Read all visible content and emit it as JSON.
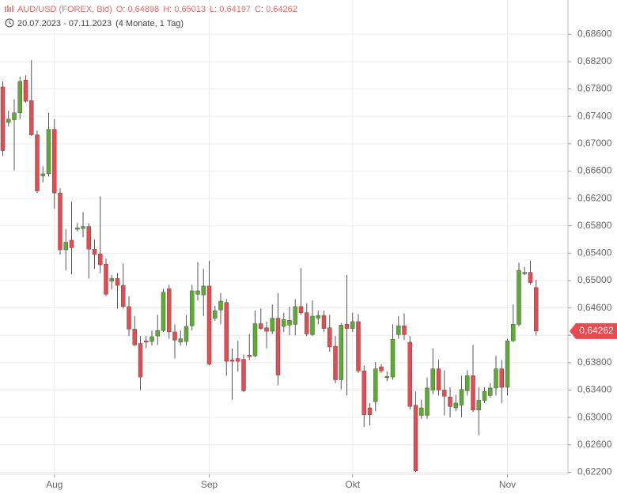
{
  "chart_data": {
    "type": "candlestick",
    "title": "AUD/USD (FOREX, Bid)",
    "quote": [
      "O: 0,64898",
      "H: 0,65013",
      "L: 0,64197",
      "C: 0,64262"
    ],
    "date_range": "20.07.2023 - 07.11.2023",
    "period": "(4 Monate, 1 Tag)",
    "last_label": "0,64262",
    "up_color": "#5aad2e",
    "down_color": "#e84a4f",
    "grid": true,
    "categories": [
      null,
      null,
      null,
      null,
      null,
      null,
      null,
      null,
      null,
      "Aug",
      null,
      null,
      null,
      null,
      null,
      null,
      null,
      null,
      null,
      null,
      null,
      null,
      null,
      null,
      null,
      null,
      null,
      null,
      null,
      null,
      null,
      null,
      null,
      null,
      null,
      null,
      "Sep",
      null,
      null,
      null,
      null,
      null,
      null,
      null,
      null,
      null,
      null,
      null,
      null,
      null,
      null,
      null,
      null,
      null,
      null,
      null,
      null,
      null,
      null,
      null,
      null,
      "Okt",
      null,
      null,
      null,
      null,
      null,
      null,
      null,
      null,
      null,
      null,
      null,
      null,
      null,
      null,
      null,
      null,
      null,
      null,
      null,
      null,
      null,
      null,
      null,
      null,
      null,
      null,
      "Nov",
      null,
      null,
      null,
      null,
      null
    ],
    "open": [
      0.6783,
      0.6731,
      0.6735,
      0.6745,
      0.6793,
      0.6763,
      0.6713,
      0.6653,
      0.6656,
      0.6721,
      0.6628,
      0.6545,
      0.6559,
      0.6575,
      0.6576,
      0.6579,
      0.6546,
      0.6539,
      0.6524,
      0.6499,
      0.6503,
      0.6493,
      0.6462,
      0.6429,
      0.6408,
      0.6412,
      0.6411,
      0.6419,
      0.6427,
      0.6488,
      0.6425,
      0.641,
      0.6411,
      0.6434,
      0.648,
      0.6479,
      0.6492,
      0.6445,
      0.6457,
      0.6468,
      0.6384,
      0.6386,
      0.6385,
      0.6391,
      0.639,
      0.6437,
      0.6431,
      0.6426,
      0.6445,
      0.6433,
      0.6435,
      0.6436,
      0.6462,
      0.6453,
      0.6421,
      0.6445,
      0.6449,
      0.6431,
      0.6404,
      0.6355,
      0.6436,
      0.643,
      0.644,
      0.6368,
      0.6314,
      0.6323,
      0.6374,
      0.6358,
      0.6359,
      0.6421,
      0.6434,
      0.641,
      0.6318,
      0.6303,
      0.6303,
      0.634,
      0.6371,
      0.634,
      0.633,
      0.6314,
      0.6318,
      0.6339,
      0.6361,
      0.6311,
      0.6325,
      0.6332,
      0.6343,
      0.6371,
      0.6344,
      0.6412,
      0.6436,
      0.6512,
      0.6512,
      0.64898
    ],
    "high": [
      0.6791,
      0.6748,
      0.6765,
      0.6798,
      0.68,
      0.6822,
      0.6719,
      0.6667,
      0.6745,
      0.6736,
      0.6635,
      0.6575,
      0.6615,
      0.6584,
      0.66,
      0.6584,
      0.656,
      0.6623,
      0.6532,
      0.6508,
      0.6511,
      0.6525,
      0.6477,
      0.6448,
      0.6419,
      0.6419,
      0.6427,
      0.645,
      0.6488,
      0.6494,
      0.6436,
      0.6427,
      0.645,
      0.6494,
      0.6527,
      0.6517,
      0.6529,
      0.6463,
      0.6482,
      0.6473,
      0.6401,
      0.6412,
      0.6392,
      0.6422,
      0.6456,
      0.6459,
      0.644,
      0.6465,
      0.6482,
      0.6453,
      0.6462,
      0.6473,
      0.6518,
      0.6467,
      0.6471,
      0.6456,
      0.6456,
      0.645,
      0.6419,
      0.6438,
      0.6508,
      0.6453,
      0.6451,
      0.6376,
      0.6321,
      0.6381,
      0.6378,
      0.6367,
      0.6436,
      0.6448,
      0.6452,
      0.6419,
      0.6338,
      0.6326,
      0.6358,
      0.6401,
      0.6384,
      0.6369,
      0.6344,
      0.6333,
      0.6361,
      0.6369,
      0.6406,
      0.6344,
      0.6344,
      0.635,
      0.639,
      0.6384,
      0.6415,
      0.6465,
      0.6526,
      0.652,
      0.6529,
      0.65013
    ],
    "low": [
      0.6682,
      0.6725,
      0.6661,
      0.6736,
      0.676,
      0.6711,
      0.6628,
      0.6644,
      0.6652,
      0.6605,
      0.6538,
      0.6515,
      0.6509,
      0.6572,
      0.6563,
      0.6503,
      0.6517,
      0.6511,
      0.6477,
      0.6487,
      0.6459,
      0.6459,
      0.6419,
      0.6404,
      0.634,
      0.6401,
      0.6405,
      0.6406,
      0.6425,
      0.6415,
      0.6386,
      0.6405,
      0.6405,
      0.6427,
      0.6471,
      0.6448,
      0.6376,
      0.6441,
      0.6436,
      0.6361,
      0.6326,
      0.6367,
      0.6337,
      0.6384,
      0.6388,
      0.6428,
      0.6401,
      0.6422,
      0.6347,
      0.6425,
      0.642,
      0.642,
      0.645,
      0.6419,
      0.6419,
      0.6436,
      0.6425,
      0.6396,
      0.635,
      0.6341,
      0.6332,
      0.6425,
      0.6365,
      0.6286,
      0.6288,
      0.6309,
      0.6365,
      0.6353,
      0.6355,
      0.6415,
      0.6413,
      0.6312,
      0.622,
      0.6298,
      0.6298,
      0.6334,
      0.6332,
      0.6303,
      0.63,
      0.6309,
      0.63,
      0.6332,
      0.6308,
      0.6274,
      0.6321,
      0.6329,
      0.6332,
      0.6321,
      0.6332,
      0.641,
      0.6433,
      0.6508,
      0.6494,
      0.64197
    ],
    "close": [
      0.669,
      0.6736,
      0.6745,
      0.6791,
      0.6762,
      0.6713,
      0.6631,
      0.6656,
      0.6721,
      0.6628,
      0.6545,
      0.6556,
      0.6548,
      0.6577,
      0.6579,
      0.6546,
      0.6538,
      0.6523,
      0.648,
      0.6503,
      0.6493,
      0.6462,
      0.6429,
      0.6406,
      0.6359,
      0.641,
      0.6418,
      0.6427,
      0.6483,
      0.6425,
      0.6413,
      0.6415,
      0.6433,
      0.6485,
      0.6485,
      0.6492,
      0.6378,
      0.6456,
      0.647,
      0.6382,
      0.6382,
      0.6382,
      0.6339,
      0.6389,
      0.6437,
      0.643,
      0.6426,
      0.6445,
      0.6362,
      0.6443,
      0.6442,
      0.6462,
      0.6453,
      0.6422,
      0.6448,
      0.6449,
      0.643,
      0.6403,
      0.6355,
      0.6435,
      0.643,
      0.644,
      0.6368,
      0.6304,
      0.6304,
      0.6371,
      0.6368,
      0.636,
      0.6414,
      0.6434,
      0.6421,
      0.6316,
      0.6222,
      0.6314,
      0.6343,
      0.6371,
      0.634,
      0.6331,
      0.6316,
      0.6321,
      0.6341,
      0.6361,
      0.6311,
      0.6325,
      0.6338,
      0.6343,
      0.6371,
      0.6344,
      0.6412,
      0.6436,
      0.6515,
      0.651,
      0.6497,
      0.64262
    ],
    "ylim": [
      0.6217,
      0.691
    ],
    "yticks": [
      {
        "value": 0.622,
        "label": "0,62200"
      },
      {
        "value": 0.626,
        "label": "0,62600"
      },
      {
        "value": 0.63,
        "label": "0,63000"
      },
      {
        "value": 0.634,
        "label": "0,63400"
      },
      {
        "value": 0.638,
        "label": "0,63800"
      },
      {
        "value": 0.642,
        "label": "0,64200"
      },
      {
        "value": 0.646,
        "label": "0,64600"
      },
      {
        "value": 0.65,
        "label": "0,65000"
      },
      {
        "value": 0.654,
        "label": "0,65400"
      },
      {
        "value": 0.658,
        "label": "0,65800"
      },
      {
        "value": 0.662,
        "label": "0,66200"
      },
      {
        "value": 0.666,
        "label": "0,66600"
      },
      {
        "value": 0.67,
        "label": "0,67000"
      },
      {
        "value": 0.674,
        "label": "0,67400"
      },
      {
        "value": 0.678,
        "label": "0,67800"
      },
      {
        "value": 0.682,
        "label": "0,68200"
      },
      {
        "value": 0.686,
        "label": "0,68600"
      }
    ]
  }
}
